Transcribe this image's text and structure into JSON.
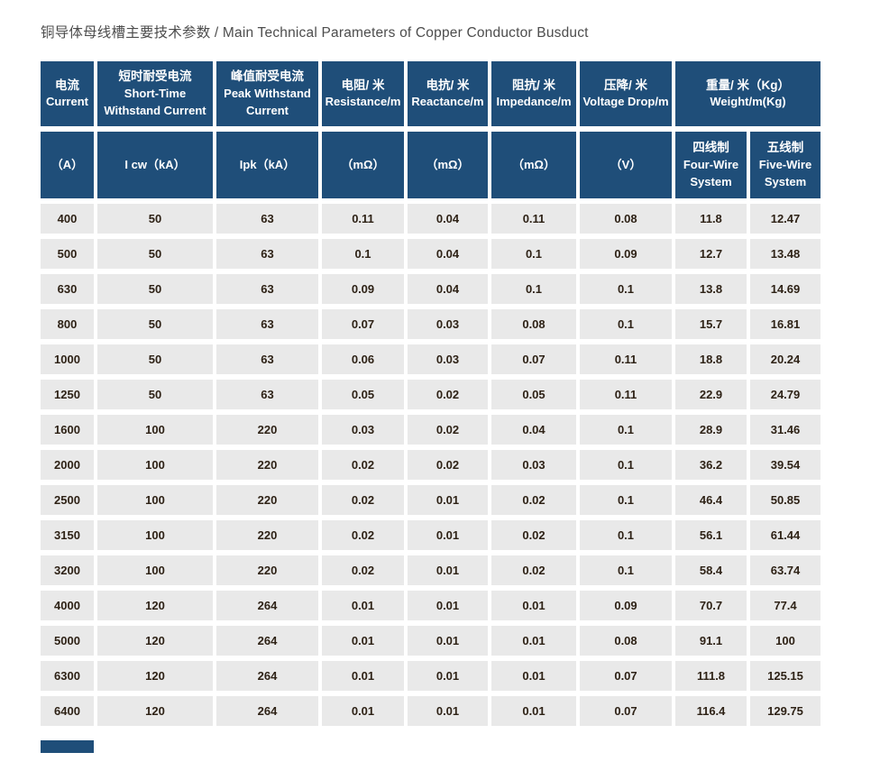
{
  "page": {
    "title": "铜导体母线槽主要技术参数 / Main Technical Parameters of Copper Conductor Busduct"
  },
  "colors": {
    "header_bg": "#1f4e79",
    "row_bg": "#e9e9e9",
    "header_text": "#ffffff",
    "cell_text": "#2e2216",
    "title_text": "#4d4d4d",
    "page_bg": "#ffffff"
  },
  "table": {
    "header_row1": [
      {
        "zh": "电流",
        "en": "Current"
      },
      {
        "zh": "短时耐受电流",
        "en": "Short-Time Withstand Current"
      },
      {
        "zh": "峰值耐受电流",
        "en": "Peak Withstand Current"
      },
      {
        "zh": "电阻/ 米",
        "en": "Resistance/m"
      },
      {
        "zh": "电抗/ 米",
        "en": "Reactance/m"
      },
      {
        "zh": "阻抗/ 米",
        "en": "Impedance/m"
      },
      {
        "zh": "压降/ 米",
        "en": "Voltage Drop/m"
      },
      {
        "zh": "重量/ 米（Kg）",
        "en": "Weight/m(Kg)"
      }
    ],
    "header_row2": {
      "current_unit": "（A）",
      "icw": "I cw（kA）",
      "ipk": "Ipk（kA）",
      "resistance_unit": "（mΩ）",
      "reactance_unit": "（mΩ）",
      "impedance_unit": "（mΩ）",
      "voltage_unit": "（V）",
      "four_wire": {
        "zh": "四线制",
        "en": "Four-Wire System"
      },
      "five_wire": {
        "zh": "五线制",
        "en": "Five-Wire System"
      }
    },
    "rows": [
      [
        "400",
        "50",
        "63",
        "0.11",
        "0.04",
        "0.11",
        "0.08",
        "11.8",
        "12.47"
      ],
      [
        "500",
        "50",
        "63",
        "0.1",
        "0.04",
        "0.1",
        "0.09",
        "12.7",
        "13.48"
      ],
      [
        "630",
        "50",
        "63",
        "0.09",
        "0.04",
        "0.1",
        "0.1",
        "13.8",
        "14.69"
      ],
      [
        "800",
        "50",
        "63",
        "0.07",
        "0.03",
        "0.08",
        "0.1",
        "15.7",
        "16.81"
      ],
      [
        "1000",
        "50",
        "63",
        "0.06",
        "0.03",
        "0.07",
        "0.11",
        "18.8",
        "20.24"
      ],
      [
        "1250",
        "50",
        "63",
        "0.05",
        "0.02",
        "0.05",
        "0.11",
        "22.9",
        "24.79"
      ],
      [
        "1600",
        "100",
        "220",
        "0.03",
        "0.02",
        "0.04",
        "0.1",
        "28.9",
        "31.46"
      ],
      [
        "2000",
        "100",
        "220",
        "0.02",
        "0.02",
        "0.03",
        "0.1",
        "36.2",
        "39.54"
      ],
      [
        "2500",
        "100",
        "220",
        "0.02",
        "0.01",
        "0.02",
        "0.1",
        "46.4",
        "50.85"
      ],
      [
        "3150",
        "100",
        "220",
        "0.02",
        "0.01",
        "0.02",
        "0.1",
        "56.1",
        "61.44"
      ],
      [
        "3200",
        "100",
        "220",
        "0.02",
        "0.01",
        "0.02",
        "0.1",
        "58.4",
        "63.74"
      ],
      [
        "4000",
        "120",
        "264",
        "0.01",
        "0.01",
        "0.01",
        "0.09",
        "70.7",
        "77.4"
      ],
      [
        "5000",
        "120",
        "264",
        "0.01",
        "0.01",
        "0.01",
        "0.08",
        "91.1",
        "100"
      ],
      [
        "6300",
        "120",
        "264",
        "0.01",
        "0.01",
        "0.01",
        "0.07",
        "111.8",
        "125.15"
      ],
      [
        "6400",
        "120",
        "264",
        "0.01",
        "0.01",
        "0.01",
        "0.07",
        "116.4",
        "129.75"
      ]
    ]
  }
}
